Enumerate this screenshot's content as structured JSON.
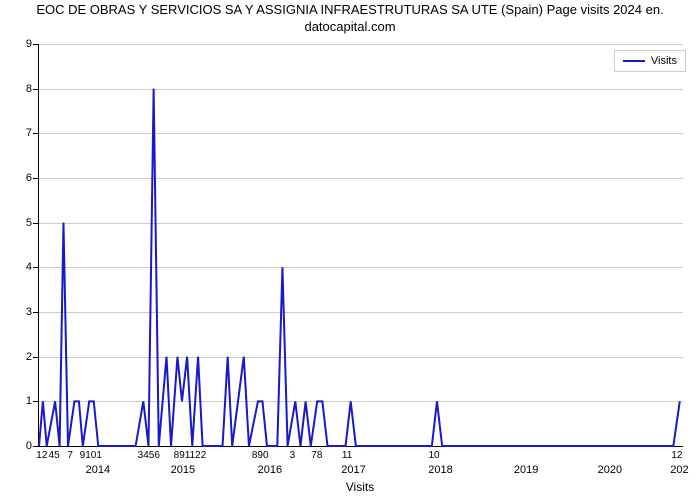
{
  "chart": {
    "type": "line",
    "title_line1": "EOC DE OBRAS Y SERVICIOS SA Y ASSIGNIA INFRAESTRUTURAS SA UTE (Spain) Page visits 2024 en.",
    "title_line2": "datocapital.com",
    "title_fontsize": 13,
    "title_color": "#000000",
    "background_color": "#ffffff",
    "grid_color": "#cccccc",
    "axis_color": "#000000",
    "line_color": "#1919cc",
    "line_width": 2,
    "ylabel_fontsize": 11,
    "xlabel_fontsize": 10,
    "ylim": [
      0,
      9
    ],
    "ytick_step": 1,
    "yticks": [
      0,
      1,
      2,
      3,
      4,
      5,
      6,
      7,
      8,
      9
    ],
    "x_axis_title": "Visits",
    "x_secondary_labels": [
      "12",
      "45",
      "7",
      "9101",
      "3456",
      "891122",
      "890",
      "3",
      "78",
      "11",
      "10",
      "12"
    ],
    "x_secondary_positions": [
      0.006,
      0.025,
      0.05,
      0.082,
      0.172,
      0.236,
      0.345,
      0.395,
      0.433,
      0.48,
      0.615,
      0.992
    ],
    "x_year_labels": [
      "2014",
      "2015",
      "2016",
      "2017",
      "2018",
      "2019",
      "2020",
      "202"
    ],
    "x_year_positions": [
      0.093,
      0.225,
      0.36,
      0.49,
      0.625,
      0.758,
      0.888,
      0.996
    ],
    "legend_label": "Visits",
    "data_points": [
      {
        "x": 0.0,
        "y": 0
      },
      {
        "x": 0.006,
        "y": 1
      },
      {
        "x": 0.012,
        "y": 0
      },
      {
        "x": 0.025,
        "y": 1
      },
      {
        "x": 0.032,
        "y": 0
      },
      {
        "x": 0.038,
        "y": 5
      },
      {
        "x": 0.045,
        "y": 0
      },
      {
        "x": 0.055,
        "y": 1
      },
      {
        "x": 0.062,
        "y": 1
      },
      {
        "x": 0.068,
        "y": 0
      },
      {
        "x": 0.078,
        "y": 1
      },
      {
        "x": 0.085,
        "y": 1
      },
      {
        "x": 0.092,
        "y": 0
      },
      {
        "x": 0.15,
        "y": 0
      },
      {
        "x": 0.162,
        "y": 1
      },
      {
        "x": 0.17,
        "y": 0
      },
      {
        "x": 0.178,
        "y": 8
      },
      {
        "x": 0.186,
        "y": 0
      },
      {
        "x": 0.198,
        "y": 2
      },
      {
        "x": 0.205,
        "y": 0
      },
      {
        "x": 0.215,
        "y": 2
      },
      {
        "x": 0.222,
        "y": 1
      },
      {
        "x": 0.23,
        "y": 2
      },
      {
        "x": 0.238,
        "y": 0
      },
      {
        "x": 0.247,
        "y": 2
      },
      {
        "x": 0.254,
        "y": 0
      },
      {
        "x": 0.285,
        "y": 0
      },
      {
        "x": 0.293,
        "y": 2
      },
      {
        "x": 0.3,
        "y": 0
      },
      {
        "x": 0.318,
        "y": 2
      },
      {
        "x": 0.326,
        "y": 0
      },
      {
        "x": 0.34,
        "y": 1
      },
      {
        "x": 0.347,
        "y": 1
      },
      {
        "x": 0.354,
        "y": 0
      },
      {
        "x": 0.37,
        "y": 0
      },
      {
        "x": 0.378,
        "y": 4
      },
      {
        "x": 0.386,
        "y": 0
      },
      {
        "x": 0.398,
        "y": 1
      },
      {
        "x": 0.406,
        "y": 0
      },
      {
        "x": 0.414,
        "y": 1
      },
      {
        "x": 0.422,
        "y": 0
      },
      {
        "x": 0.432,
        "y": 1
      },
      {
        "x": 0.44,
        "y": 1
      },
      {
        "x": 0.448,
        "y": 0
      },
      {
        "x": 0.476,
        "y": 0
      },
      {
        "x": 0.484,
        "y": 1
      },
      {
        "x": 0.492,
        "y": 0
      },
      {
        "x": 0.61,
        "y": 0
      },
      {
        "x": 0.618,
        "y": 1
      },
      {
        "x": 0.626,
        "y": 0
      },
      {
        "x": 0.985,
        "y": 0
      },
      {
        "x": 0.995,
        "y": 1
      }
    ]
  }
}
